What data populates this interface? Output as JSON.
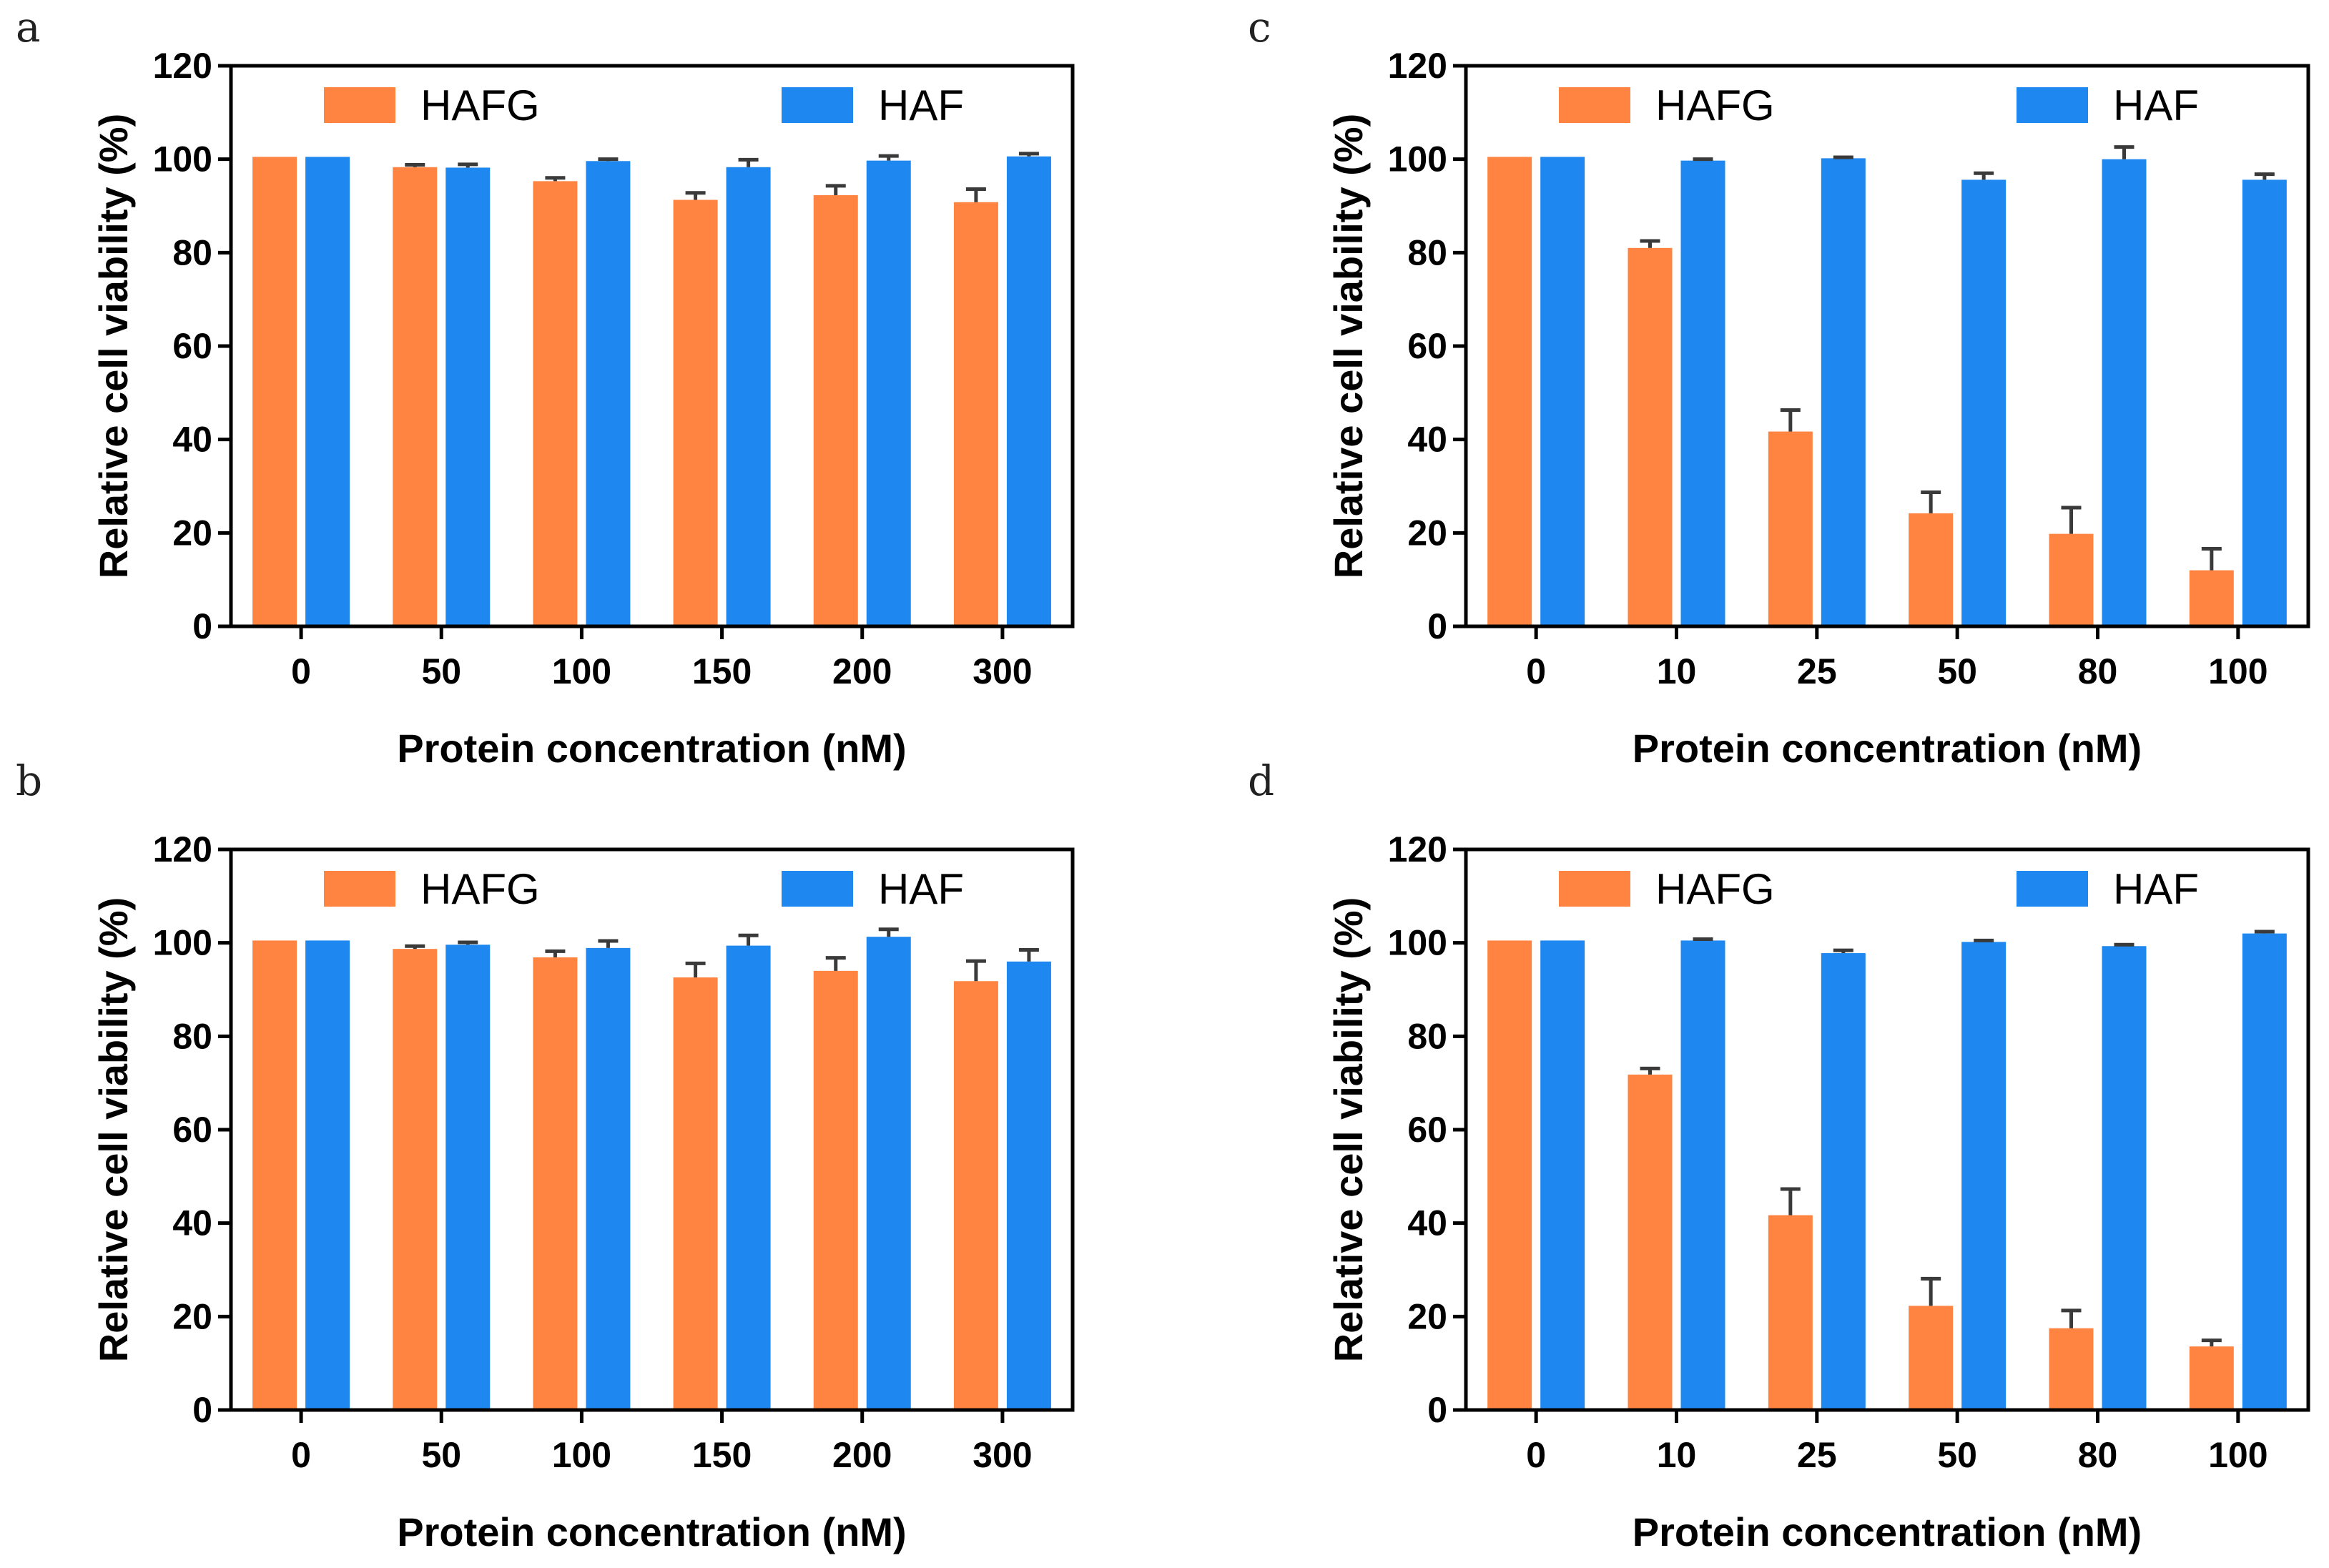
{
  "figure": {
    "colors": {
      "HAFG": "#FF8442",
      "HAF": "#1E88F0",
      "axis": "#000000",
      "error_bar": "#3a3a3a"
    }
  },
  "chart_data": [
    {
      "panel": "a",
      "type": "bar",
      "categories": [
        "0",
        "50",
        "100",
        "150",
        "200",
        "300"
      ],
      "series": [
        {
          "name": "HAFG",
          "values": [
            100.5,
            98.3,
            95.3,
            91.3,
            92.3,
            90.8
          ],
          "errors": [
            0,
            0.5,
            0.7,
            1.5,
            2.0,
            2.8
          ]
        },
        {
          "name": "HAF",
          "values": [
            100.5,
            98.2,
            99.6,
            98.3,
            99.7,
            100.6
          ],
          "errors": [
            0,
            0.7,
            0.4,
            1.6,
            1.0,
            0.6
          ]
        }
      ],
      "xlabel": "Protein concentration (nM)",
      "ylabel": "Relative cell viability (%)",
      "ylim": [
        0,
        120
      ],
      "yticks": [
        "0",
        "20",
        "40",
        "60",
        "80",
        "100",
        "120"
      ],
      "legend": "top"
    },
    {
      "panel": "b",
      "type": "bar",
      "categories": [
        "0",
        "50",
        "100",
        "150",
        "200",
        "300"
      ],
      "series": [
        {
          "name": "HAFG",
          "values": [
            100.5,
            98.7,
            96.9,
            92.6,
            94.0,
            91.8
          ],
          "errors": [
            0,
            0.6,
            1.3,
            3.0,
            2.8,
            4.3
          ]
        },
        {
          "name": "HAF",
          "values": [
            100.5,
            99.6,
            98.9,
            99.4,
            101.3,
            96.0
          ],
          "errors": [
            0,
            0.5,
            1.5,
            2.2,
            1.6,
            2.5
          ]
        }
      ],
      "xlabel": "Protein concentration (nM)",
      "ylabel": "Relative cell viability (%)",
      "ylim": [
        0,
        120
      ],
      "yticks": [
        "0",
        "20",
        "40",
        "60",
        "80",
        "100",
        "120"
      ],
      "legend": "top"
    },
    {
      "panel": "c",
      "type": "bar",
      "categories": [
        "0",
        "10",
        "25",
        "50",
        "80",
        "100"
      ],
      "series": [
        {
          "name": "HAFG",
          "values": [
            100.5,
            81.0,
            41.7,
            24.2,
            19.8,
            12.0
          ],
          "errors": [
            0,
            1.5,
            4.6,
            4.5,
            5.6,
            4.6
          ]
        },
        {
          "name": "HAF",
          "values": [
            100.5,
            99.7,
            100.2,
            95.6,
            100.0,
            95.6
          ],
          "errors": [
            0,
            0.3,
            0.2,
            1.4,
            2.6,
            1.2
          ]
        }
      ],
      "xlabel": "Protein concentration (nM)",
      "ylabel": "Relative cell viability (%)",
      "ylim": [
        0,
        120
      ],
      "yticks": [
        "0",
        "20",
        "40",
        "60",
        "80",
        "100",
        "120"
      ],
      "legend": "top"
    },
    {
      "panel": "d",
      "type": "bar",
      "categories": [
        "0",
        "10",
        "25",
        "50",
        "80",
        "100"
      ],
      "series": [
        {
          "name": "HAFG",
          "values": [
            100.5,
            71.8,
            41.7,
            22.3,
            17.5,
            13.6
          ],
          "errors": [
            0,
            1.3,
            5.6,
            5.8,
            3.8,
            1.3
          ]
        },
        {
          "name": "HAF",
          "values": [
            100.5,
            100.5,
            97.8,
            100.2,
            99.3,
            102.0
          ],
          "errors": [
            0,
            0.3,
            0.6,
            0.3,
            0.3,
            0.4
          ]
        }
      ],
      "xlabel": "Protein concentration (nM)",
      "ylabel": "Relative cell viability (%)",
      "ylim": [
        0,
        120
      ],
      "yticks": [
        "0",
        "20",
        "40",
        "60",
        "80",
        "100",
        "120"
      ],
      "legend": "top"
    }
  ]
}
